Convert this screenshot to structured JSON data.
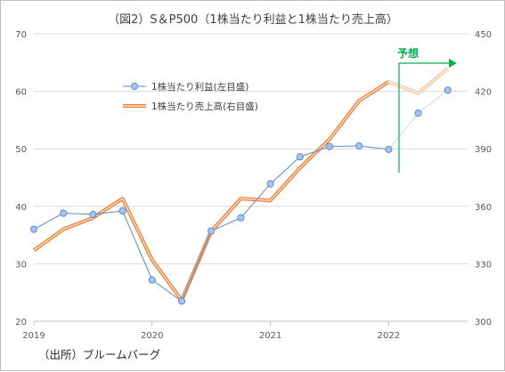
{
  "chart_data": {
    "type": "line",
    "title": "（図2）S＆P500（1株当たり利益と1株当たり売上高）",
    "x_ticks": [
      "2019",
      "2020",
      "2021",
      "2022"
    ],
    "left_axis": {
      "ylim": [
        20,
        70
      ],
      "ticks": [
        20,
        30,
        40,
        50,
        60,
        70
      ]
    },
    "right_axis": {
      "ylim": [
        300,
        450
      ],
      "ticks": [
        300,
        330,
        360,
        390,
        420,
        450
      ]
    },
    "grid": "horizontal",
    "series": [
      {
        "name": "1株当たり利益(左目盛)",
        "axis": "left",
        "color": "#5b8bd0",
        "marker": "circle",
        "x": [
          "2019Q1",
          "2019Q2",
          "2019Q3",
          "2019Q4",
          "2020Q1",
          "2020Q2",
          "2020Q3",
          "2020Q4",
          "2021Q1",
          "2021Q2",
          "2021Q3",
          "2021Q4",
          "2022Q1",
          "2022Q2",
          "2022Q3"
        ],
        "values": [
          36.0,
          38.8,
          38.6,
          39.2,
          27.2,
          23.5,
          35.7,
          38.0,
          43.9,
          48.6,
          50.4,
          50.5,
          49.9,
          56.2,
          60.2
        ],
        "forecast_from_index": 13
      },
      {
        "name": "1株当たり売上高(右目盛)",
        "axis": "right",
        "color": "#ed7d31",
        "x": [
          "2019Q1",
          "2019Q2",
          "2019Q3",
          "2019Q4",
          "2020Q1",
          "2020Q2",
          "2020Q3",
          "2020Q4",
          "2021Q1",
          "2021Q2",
          "2021Q3",
          "2021Q4",
          "2022Q1",
          "2022Q2",
          "2022Q3"
        ],
        "values": [
          337,
          348,
          354,
          364,
          332,
          311,
          347,
          364,
          363,
          380,
          395,
          415,
          425,
          419,
          432
        ],
        "forecast_from_index": 13
      }
    ],
    "annotations": [
      {
        "text": "予想",
        "color": "#00b050"
      }
    ]
  },
  "source_note": "（出所）ブルームバーグ"
}
